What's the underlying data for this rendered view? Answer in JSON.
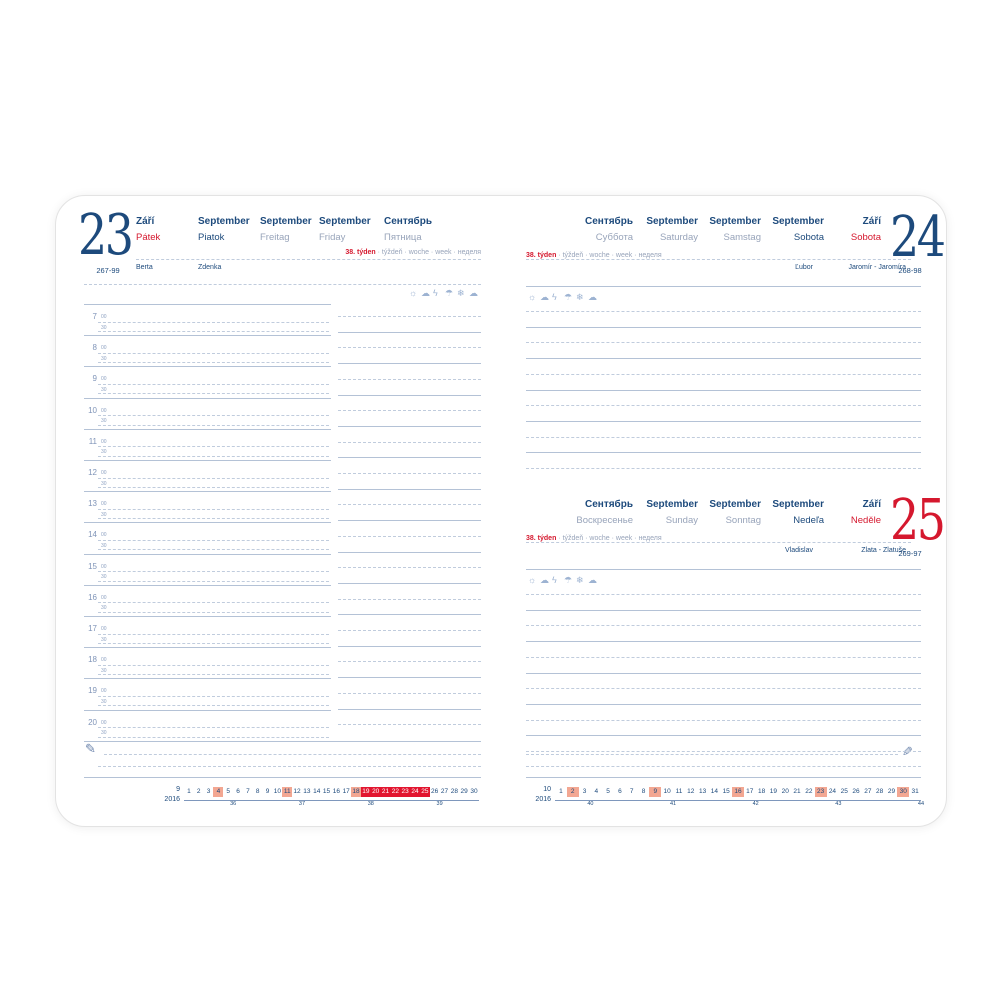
{
  "colors": {
    "navy": "#1d4a7c",
    "red": "#d5182e",
    "gray_text": "#98a4ba",
    "line_solid": "#b4c2d6",
    "line_dash": "#c0ccdd",
    "salmon": "#f3a792",
    "highlight_red": "#e2152f",
    "icon_blue": "#9db3d2"
  },
  "pen_icon": "✎",
  "weather_icons": [
    {
      "name": "sun-icon",
      "glyph": "☼"
    },
    {
      "name": "partly-cloudy-icon",
      "glyph": "☁"
    },
    {
      "name": "lightning-icon",
      "glyph": "ϟ"
    },
    {
      "name": "rain-icon",
      "glyph": "☂"
    },
    {
      "name": "snowflake-icon",
      "glyph": "❄"
    },
    {
      "name": "wind-cloud-icon",
      "glyph": "☁"
    }
  ],
  "left": {
    "big_day": "23",
    "page_ref": "267-99",
    "week_red": "38. týden",
    "week_rest": "· týždeň · woche · week · неделя",
    "columns": [
      {
        "month": "Září",
        "day": "Pátek",
        "day_style": "red",
        "name": "Berta"
      },
      {
        "month": "September",
        "day": "Piatok",
        "day_style": "navy",
        "name": "Zdenka"
      },
      {
        "month": "September",
        "day": "Freitag",
        "day_style": "grayt",
        "name": ""
      },
      {
        "month": "September",
        "day": "Friday",
        "day_style": "grayt",
        "name": ""
      },
      {
        "month": "Сентябрь",
        "day": "Пятница",
        "day_style": "grayt",
        "name": ""
      }
    ],
    "hours": [
      "7",
      "8",
      "9",
      "10",
      "11",
      "12",
      "13",
      "14",
      "15",
      "16",
      "17",
      "18",
      "19",
      "20"
    ],
    "minutes": [
      "00",
      "30"
    ],
    "calendar": {
      "month": "9",
      "year": "2016",
      "days": 30,
      "sundays": [
        4,
        11,
        18
      ],
      "current_week": [
        19,
        20,
        21,
        22,
        23,
        24,
        25
      ],
      "weeks": [
        {
          "n": "36",
          "at": 5
        },
        {
          "n": "37",
          "at": 12
        },
        {
          "n": "38",
          "at": 19
        },
        {
          "n": "39",
          "at": 26
        }
      ]
    }
  },
  "right": {
    "saturday": {
      "big_day": "24",
      "page_ref": "268-98",
      "week_red": "38. týden",
      "week_rest": "· týždeň · woche · week · неделя",
      "names": [
        "Ľubor",
        "Jaromír - Jaromíra"
      ],
      "columns": [
        {
          "month": "Сентябрь",
          "day": "Суббота",
          "day_style": "grayt"
        },
        {
          "month": "September",
          "day": "Saturday",
          "day_style": "grayt"
        },
        {
          "month": "September",
          "day": "Samstag",
          "day_style": "grayt"
        },
        {
          "month": "September",
          "day": "Sobota",
          "day_style": "navy"
        },
        {
          "month": "Září",
          "day": "Sobota",
          "day_style": "red"
        }
      ]
    },
    "sunday": {
      "big_day": "25",
      "page_ref": "269-97",
      "week_red": "38. týden",
      "week_rest": "· týždeň · woche · week · неделя",
      "names": [
        "Vladislav",
        "Zlata - Zlatuše"
      ],
      "columns": [
        {
          "month": "Сентябрь",
          "day": "Воскресенье",
          "day_style": "grayt"
        },
        {
          "month": "September",
          "day": "Sunday",
          "day_style": "grayt"
        },
        {
          "month": "September",
          "day": "Sonntag",
          "day_style": "grayt"
        },
        {
          "month": "September",
          "day": "Nedeľa",
          "day_style": "navy"
        },
        {
          "month": "Září",
          "day": "Neděle",
          "day_style": "red"
        }
      ]
    },
    "calendar": {
      "month": "10",
      "year": "2016",
      "days": 31,
      "sundays": [
        2,
        9,
        16,
        23,
        30
      ],
      "current_week": [],
      "weeks": [
        {
          "n": "40",
          "at": 3
        },
        {
          "n": "41",
          "at": 10
        },
        {
          "n": "42",
          "at": 17
        },
        {
          "n": "43",
          "at": 24
        },
        {
          "n": "44",
          "at": 31
        }
      ]
    }
  }
}
